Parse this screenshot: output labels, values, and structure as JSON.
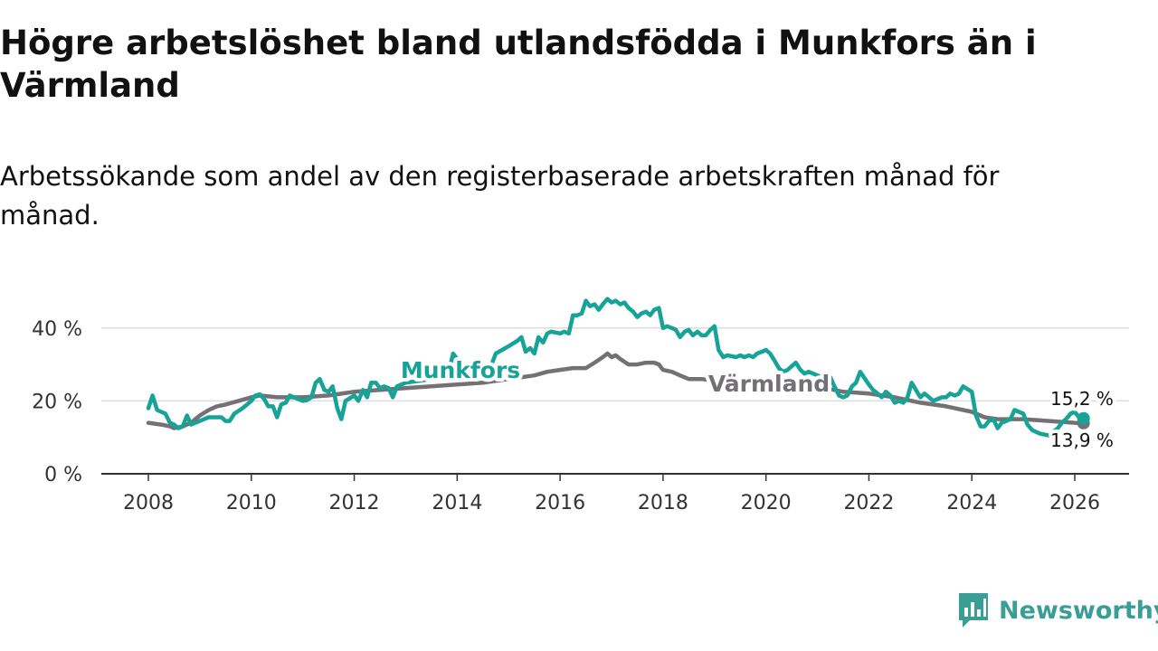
{
  "title": "Högre arbetslöshet bland utlandsfödda i Munkfors än i Värmland",
  "subtitle": "Arbetssökande som andel av den registerbaserade arbetskraften månad för månad.",
  "brand": {
    "name": "Newsworthy"
  },
  "colors": {
    "munkfors": "#17a398",
    "varmland": "#747174",
    "grid": "#dddddd",
    "axis": "#333333",
    "text": "#333333"
  },
  "chart_data": {
    "type": "line",
    "title": "Högre arbetslöshet bland utlandsfödda i Munkfors än i Värmland",
    "xlabel": "",
    "ylabel": "",
    "xlim": [
      2007.8,
      2026.8
    ],
    "ylim": [
      0,
      50
    ],
    "x_ticks": [
      2008,
      2010,
      2012,
      2014,
      2016,
      2018,
      2020,
      2022,
      2024,
      2026
    ],
    "x_tick_labels": [
      "2008",
      "2010",
      "2012",
      "2014",
      "2016",
      "2018",
      "2020",
      "2022",
      "2024",
      "2026"
    ],
    "y_ticks": [
      0,
      20,
      40
    ],
    "y_tick_labels": [
      "0 %",
      "20 %",
      "40 %"
    ],
    "grid": true,
    "series": [
      {
        "name": "Munkfors",
        "label": "Munkfors",
        "end_label": "15,2 %",
        "points": [
          [
            2008.0,
            18
          ],
          [
            2008.08,
            21.5
          ],
          [
            2008.17,
            17.5
          ],
          [
            2008.25,
            17
          ],
          [
            2008.33,
            16.5
          ],
          [
            2008.42,
            14
          ],
          [
            2008.5,
            13.5
          ],
          [
            2008.58,
            12.5
          ],
          [
            2008.67,
            13
          ],
          [
            2008.75,
            16
          ],
          [
            2008.83,
            13.5
          ],
          [
            2009.0,
            14.5
          ],
          [
            2009.17,
            15.5
          ],
          [
            2009.33,
            15.5
          ],
          [
            2009.42,
            15.5
          ],
          [
            2009.5,
            14.5
          ],
          [
            2009.58,
            14.5
          ],
          [
            2009.67,
            16.5
          ],
          [
            2009.83,
            18
          ],
          [
            2010.0,
            20
          ],
          [
            2010.08,
            21.5
          ],
          [
            2010.17,
            21.8
          ],
          [
            2010.25,
            20.5
          ],
          [
            2010.33,
            18.5
          ],
          [
            2010.42,
            18.5
          ],
          [
            2010.5,
            15.5
          ],
          [
            2010.58,
            19
          ],
          [
            2010.67,
            19.5
          ],
          [
            2010.75,
            21.5
          ],
          [
            2010.83,
            21
          ],
          [
            2011.0,
            20
          ],
          [
            2011.08,
            20.2
          ],
          [
            2011.17,
            21
          ],
          [
            2011.25,
            25
          ],
          [
            2011.33,
            26
          ],
          [
            2011.42,
            23
          ],
          [
            2011.5,
            22.5
          ],
          [
            2011.58,
            24
          ],
          [
            2011.67,
            18
          ],
          [
            2011.75,
            15
          ],
          [
            2011.83,
            20
          ],
          [
            2012.0,
            21.5
          ],
          [
            2012.08,
            20
          ],
          [
            2012.17,
            23
          ],
          [
            2012.25,
            21
          ],
          [
            2012.33,
            25
          ],
          [
            2012.42,
            25
          ],
          [
            2012.5,
            23.5
          ],
          [
            2012.58,
            24
          ],
          [
            2012.67,
            23.5
          ],
          [
            2012.75,
            21
          ],
          [
            2012.83,
            24
          ],
          [
            2013.0,
            25
          ],
          [
            2013.5,
            26
          ],
          [
            2013.83,
            27.5
          ],
          [
            2013.92,
            33
          ],
          [
            2014.0,
            31.5
          ],
          [
            2014.08,
            29
          ],
          [
            2014.42,
            27
          ],
          [
            2014.67,
            30
          ],
          [
            2014.75,
            33
          ],
          [
            2015.0,
            35
          ],
          [
            2015.17,
            36.5
          ],
          [
            2015.25,
            37.5
          ],
          [
            2015.33,
            33.5
          ],
          [
            2015.42,
            34.5
          ],
          [
            2015.5,
            33
          ],
          [
            2015.58,
            37.5
          ],
          [
            2015.67,
            36
          ],
          [
            2015.75,
            38.5
          ],
          [
            2015.83,
            39
          ],
          [
            2016.0,
            38.5
          ],
          [
            2016.08,
            39
          ],
          [
            2016.17,
            38.5
          ],
          [
            2016.25,
            43.5
          ],
          [
            2016.33,
            43.5
          ],
          [
            2016.42,
            44
          ],
          [
            2016.5,
            47.5
          ],
          [
            2016.58,
            46
          ],
          [
            2016.67,
            46.5
          ],
          [
            2016.75,
            45
          ],
          [
            2016.83,
            46.5
          ],
          [
            2016.92,
            48
          ],
          [
            2017.0,
            47
          ],
          [
            2017.08,
            47.5
          ],
          [
            2017.17,
            46.5
          ],
          [
            2017.25,
            47
          ],
          [
            2017.33,
            45.5
          ],
          [
            2017.42,
            44.5
          ],
          [
            2017.5,
            43
          ],
          [
            2017.58,
            44
          ],
          [
            2017.67,
            44.5
          ],
          [
            2017.75,
            43.5
          ],
          [
            2017.83,
            45
          ],
          [
            2017.92,
            45.5
          ],
          [
            2018.0,
            40
          ],
          [
            2018.08,
            40.5
          ],
          [
            2018.17,
            40
          ],
          [
            2018.25,
            39.5
          ],
          [
            2018.33,
            37.5
          ],
          [
            2018.42,
            39
          ],
          [
            2018.5,
            39.5
          ],
          [
            2018.58,
            38
          ],
          [
            2018.67,
            39
          ],
          [
            2018.75,
            38
          ],
          [
            2018.83,
            38
          ],
          [
            2018.92,
            39.5
          ],
          [
            2019.0,
            40.5
          ],
          [
            2019.08,
            34
          ],
          [
            2019.17,
            32
          ],
          [
            2019.25,
            32.5
          ],
          [
            2019.42,
            32
          ],
          [
            2019.5,
            32.5
          ],
          [
            2019.58,
            32
          ],
          [
            2019.67,
            32.5
          ],
          [
            2019.75,
            32
          ],
          [
            2019.83,
            33
          ],
          [
            2019.92,
            33.5
          ],
          [
            2020.0,
            34
          ],
          [
            2020.08,
            33
          ],
          [
            2020.17,
            31
          ],
          [
            2020.25,
            29
          ],
          [
            2020.33,
            28
          ],
          [
            2020.42,
            28.5
          ],
          [
            2020.5,
            29.5
          ],
          [
            2020.58,
            30.5
          ],
          [
            2020.67,
            28.5
          ],
          [
            2020.75,
            27.5
          ],
          [
            2020.83,
            28
          ],
          [
            2021.0,
            27
          ],
          [
            2021.08,
            26.5
          ],
          [
            2021.17,
            27.5
          ],
          [
            2021.25,
            26.5
          ],
          [
            2021.33,
            24
          ],
          [
            2021.42,
            21.5
          ],
          [
            2021.5,
            21
          ],
          [
            2021.58,
            21.5
          ],
          [
            2021.67,
            24
          ],
          [
            2021.75,
            25
          ],
          [
            2021.83,
            28
          ],
          [
            2022.0,
            24.5
          ],
          [
            2022.08,
            23
          ],
          [
            2022.17,
            22
          ],
          [
            2022.25,
            21
          ],
          [
            2022.33,
            22.5
          ],
          [
            2022.42,
            21.5
          ],
          [
            2022.5,
            19.5
          ],
          [
            2022.58,
            20
          ],
          [
            2022.67,
            19.5
          ],
          [
            2022.75,
            21
          ],
          [
            2022.83,
            25
          ],
          [
            2023.0,
            21
          ],
          [
            2023.08,
            22
          ],
          [
            2023.17,
            21
          ],
          [
            2023.25,
            20
          ],
          [
            2023.33,
            20.5
          ],
          [
            2023.42,
            21
          ],
          [
            2023.5,
            21
          ],
          [
            2023.58,
            22
          ],
          [
            2023.67,
            21.5
          ],
          [
            2023.75,
            22
          ],
          [
            2023.83,
            24
          ],
          [
            2024.0,
            22.5
          ],
          [
            2024.08,
            16
          ],
          [
            2024.17,
            13
          ],
          [
            2024.25,
            13
          ],
          [
            2024.33,
            14.5
          ],
          [
            2024.42,
            15
          ],
          [
            2024.5,
            12.5
          ],
          [
            2024.58,
            14
          ],
          [
            2024.67,
            14.5
          ],
          [
            2024.75,
            15
          ],
          [
            2024.83,
            17.5
          ],
          [
            2025.0,
            16.5
          ],
          [
            2025.08,
            13.5
          ],
          [
            2025.17,
            12
          ],
          [
            2025.25,
            11.5
          ],
          [
            2025.33,
            11
          ],
          [
            2025.5,
            10.5
          ],
          [
            2025.58,
            11.5
          ],
          [
            2025.67,
            12.5
          ],
          [
            2025.75,
            14
          ],
          [
            2025.83,
            15
          ],
          [
            2025.92,
            16.5
          ],
          [
            2026.0,
            17
          ],
          [
            2026.08,
            15.5
          ],
          [
            2026.17,
            15.2
          ]
        ]
      },
      {
        "name": "Värmland",
        "label": "Värmland",
        "end_label": "13,9 %",
        "points": [
          [
            2008.0,
            14
          ],
          [
            2008.25,
            13.5
          ],
          [
            2008.42,
            13
          ],
          [
            2008.5,
            12.5
          ],
          [
            2008.67,
            13
          ],
          [
            2008.83,
            14
          ],
          [
            2009.0,
            16
          ],
          [
            2009.17,
            17.5
          ],
          [
            2009.33,
            18.5
          ],
          [
            2009.5,
            19
          ],
          [
            2009.75,
            20
          ],
          [
            2010.0,
            21
          ],
          [
            2010.17,
            21.5
          ],
          [
            2010.5,
            21
          ],
          [
            2010.75,
            21
          ],
          [
            2011.0,
            21
          ],
          [
            2011.5,
            21.5
          ],
          [
            2012.0,
            22.5
          ],
          [
            2012.5,
            23
          ],
          [
            2013.0,
            23.5
          ],
          [
            2013.5,
            24
          ],
          [
            2014.0,
            24.5
          ],
          [
            2014.5,
            25
          ],
          [
            2015.0,
            26
          ],
          [
            2015.5,
            27
          ],
          [
            2015.75,
            28
          ],
          [
            2016.0,
            28.5
          ],
          [
            2016.25,
            29
          ],
          [
            2016.5,
            29
          ],
          [
            2016.67,
            30.5
          ],
          [
            2016.83,
            32
          ],
          [
            2016.92,
            33
          ],
          [
            2017.0,
            32
          ],
          [
            2017.08,
            32.5
          ],
          [
            2017.17,
            31.5
          ],
          [
            2017.33,
            30
          ],
          [
            2017.5,
            30
          ],
          [
            2017.67,
            30.5
          ],
          [
            2017.83,
            30.5
          ],
          [
            2017.92,
            30
          ],
          [
            2018.0,
            28.5
          ],
          [
            2018.17,
            28
          ],
          [
            2018.33,
            27
          ],
          [
            2018.5,
            26
          ],
          [
            2018.75,
            26
          ],
          [
            2019.0,
            25.5
          ],
          [
            2019.5,
            25
          ],
          [
            2020.0,
            25
          ],
          [
            2020.25,
            25
          ],
          [
            2020.5,
            25
          ],
          [
            2020.75,
            25
          ],
          [
            2021.0,
            24
          ],
          [
            2021.5,
            22.5
          ],
          [
            2022.0,
            22
          ],
          [
            2022.5,
            21
          ],
          [
            2023.0,
            19.5
          ],
          [
            2023.5,
            18.5
          ],
          [
            2024.0,
            17
          ],
          [
            2024.25,
            15.5
          ],
          [
            2024.5,
            15
          ],
          [
            2025.0,
            15
          ],
          [
            2025.5,
            14.5
          ],
          [
            2026.0,
            14
          ],
          [
            2026.17,
            13.9
          ]
        ]
      }
    ]
  }
}
